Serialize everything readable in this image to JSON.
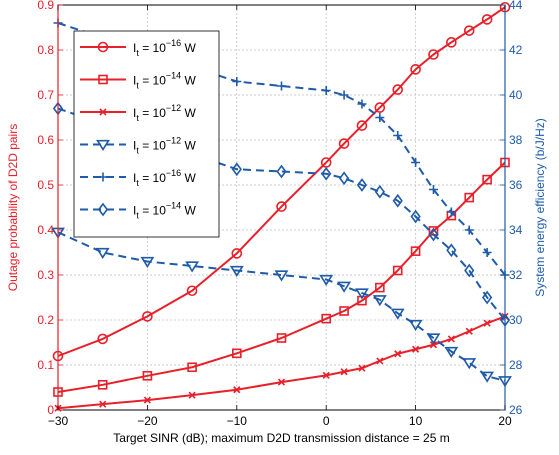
{
  "chart_data": {
    "type": "line",
    "xlabel": "Target SINR (dB); maximum D2D transmission distance = 25 m",
    "ylabel_left": "Outage probability of D2D pairs",
    "ylabel_right": "System energy efficiency (b/J/Hz)",
    "xlim": [
      -30,
      20
    ],
    "ylim_left": [
      0,
      0.9
    ],
    "ylim_right": [
      26,
      44
    ],
    "x_ticks": [
      "−30",
      "−20",
      "−10",
      "0",
      "10",
      "20"
    ],
    "y_left_ticks": [
      "0",
      "0.1",
      "0.2",
      "0.3",
      "0.4",
      "0.5",
      "0.6",
      "0.7",
      "0.8",
      "0.9"
    ],
    "y_right_ticks": [
      "26",
      "28",
      "30",
      "32",
      "34",
      "36",
      "38",
      "40",
      "42",
      "44"
    ],
    "grid": true,
    "legend_position": "top-left",
    "colors": {
      "left_axis": "#e8202a",
      "right_axis": "#1f5ba8",
      "grid": "#bdbdbd"
    },
    "series": [
      {
        "name": "I_t = 10^-16 W",
        "legend_base": "I",
        "legend_sub": "t",
        "legend_mid": " = 10",
        "legend_exp": "−16",
        "legend_unit": " W",
        "axis": "left",
        "color": "#e8202a",
        "dash": "solid",
        "marker": "circle",
        "x": [
          -30,
          -25,
          -20,
          -15,
          -10,
          -5,
          0,
          2,
          4,
          6,
          8,
          10,
          12,
          14,
          16,
          18,
          20
        ],
        "values": [
          0.12,
          0.158,
          0.208,
          0.265,
          0.348,
          0.452,
          0.55,
          0.592,
          0.632,
          0.672,
          0.712,
          0.757,
          0.79,
          0.817,
          0.843,
          0.868,
          0.895
        ]
      },
      {
        "name": "I_t = 10^-14 W",
        "legend_base": "I",
        "legend_sub": "t",
        "legend_mid": " = 10",
        "legend_exp": "−14",
        "legend_unit": " W",
        "axis": "left",
        "color": "#e8202a",
        "dash": "solid",
        "marker": "square",
        "x": [
          -30,
          -25,
          -20,
          -15,
          -10,
          -5,
          0,
          2,
          4,
          6,
          8,
          10,
          12,
          14,
          16,
          18,
          20
        ],
        "values": [
          0.04,
          0.056,
          0.076,
          0.095,
          0.126,
          0.16,
          0.203,
          0.22,
          0.243,
          0.272,
          0.31,
          0.353,
          0.398,
          0.432,
          0.472,
          0.512,
          0.55
        ]
      },
      {
        "name": "I_t = 10^-12 W",
        "legend_base": "I",
        "legend_sub": "t",
        "legend_mid": " = 10",
        "legend_exp": "−12",
        "legend_unit": " W",
        "axis": "left",
        "color": "#e8202a",
        "dash": "solid",
        "marker": "x",
        "x": [
          -30,
          -25,
          -20,
          -15,
          -10,
          -5,
          0,
          2,
          4,
          6,
          8,
          10,
          12,
          14,
          16,
          18,
          20
        ],
        "values": [
          0.004,
          0.013,
          0.022,
          0.033,
          0.045,
          0.062,
          0.077,
          0.085,
          0.093,
          0.109,
          0.125,
          0.135,
          0.145,
          0.158,
          0.175,
          0.193,
          0.208
        ]
      },
      {
        "name": "I_t = 10^-12 W",
        "legend_base": "I",
        "legend_sub": "t",
        "legend_mid": " = 10",
        "legend_exp": "−12",
        "legend_unit": " W",
        "axis": "right",
        "color": "#1f5ba8",
        "dash": "dashed",
        "marker": "triangle-down",
        "x": [
          -30,
          -25,
          -20,
          -15,
          -10,
          -5,
          0,
          2,
          4,
          6,
          8,
          10,
          12,
          14,
          16,
          18,
          20
        ],
        "values": [
          33.9,
          33.0,
          32.6,
          32.4,
          32.2,
          32.0,
          31.8,
          31.5,
          31.2,
          30.9,
          30.3,
          29.8,
          29.2,
          28.6,
          28.1,
          27.5,
          27.3
        ]
      },
      {
        "name": "I_t = 10^-16 W",
        "legend_base": "I",
        "legend_sub": "t",
        "legend_mid": " = 10",
        "legend_exp": "−16",
        "legend_unit": " W",
        "axis": "right",
        "color": "#1f5ba8",
        "dash": "dashed",
        "marker": "plus",
        "x": [
          -30,
          -10,
          -5,
          0,
          2,
          4,
          6,
          8,
          10,
          12,
          14,
          16,
          18,
          20
        ],
        "values": [
          43.2,
          40.6,
          40.4,
          40.2,
          40.0,
          39.6,
          39.0,
          38.2,
          37.0,
          35.8,
          34.8,
          34.0,
          33.0,
          32.0
        ]
      },
      {
        "name": "I_t = 10^-14 W",
        "legend_base": "I",
        "legend_sub": "t",
        "legend_mid": " = 10",
        "legend_exp": "−14",
        "legend_unit": " W",
        "axis": "right",
        "color": "#1f5ba8",
        "dash": "dashed",
        "marker": "diamond",
        "x": [
          -30,
          -10,
          -5,
          0,
          2,
          4,
          6,
          8,
          10,
          12,
          14,
          16,
          18,
          20
        ],
        "values": [
          39.4,
          36.7,
          36.6,
          36.5,
          36.3,
          36.0,
          35.7,
          35.3,
          34.6,
          33.8,
          33.1,
          32.2,
          31.0,
          30.0
        ]
      }
    ]
  }
}
